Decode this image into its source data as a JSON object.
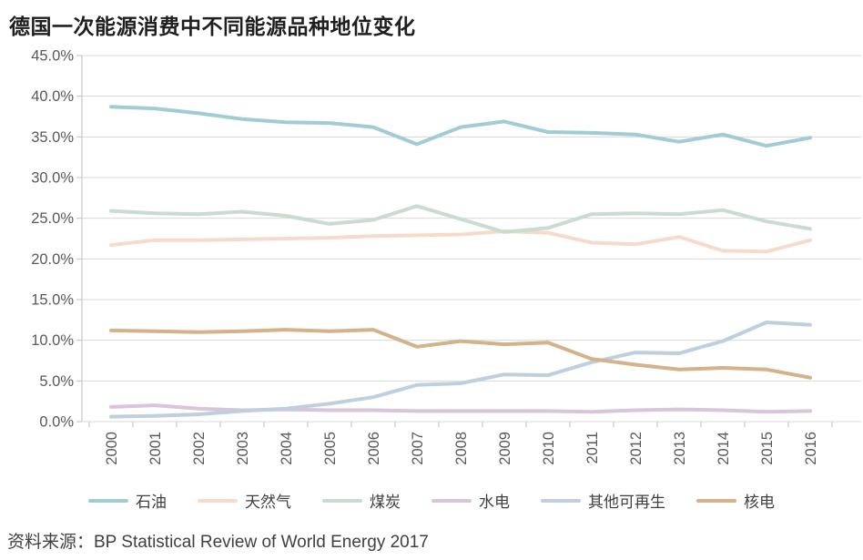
{
  "title": "德国一次能源消费中不同能源品种地位变化",
  "source": "资料来源：BP Statistical Review of World Energy 2017",
  "axis_color": "#bfbfbf",
  "grid_color": "#d9d9d9",
  "chart_data": {
    "type": "line",
    "title": "德国一次能源消费中不同能源品种地位变化",
    "xlabel": "",
    "ylabel": "",
    "ylim": [
      0,
      45
    ],
    "ytick_step": 5,
    "grid": true,
    "legend_position": "bottom",
    "y_tick_labels": [
      "45.0%",
      "40.0%",
      "35.0%",
      "30.0%",
      "25.0%",
      "20.0%",
      "15.0%",
      "10.0%",
      "5.0%",
      "0.0%"
    ],
    "x_tick_labels": [
      "2000",
      "2001",
      "2002",
      "2003",
      "2004",
      "2005",
      "2006",
      "2007",
      "2008",
      "2009",
      "2010",
      "2011",
      "2012",
      "2013",
      "2014",
      "2015",
      "2016"
    ],
    "x": [
      2000,
      2001,
      2002,
      2003,
      2004,
      2005,
      2006,
      2007,
      2008,
      2009,
      2010,
      2011,
      2012,
      2013,
      2014,
      2015,
      2016
    ],
    "series": [
      {
        "id": "oil",
        "name": "石油",
        "color": "#a2ccd3",
        "values": [
          38.7,
          38.5,
          37.9,
          37.2,
          36.8,
          36.7,
          36.2,
          34.1,
          36.2,
          36.9,
          35.6,
          35.5,
          35.3,
          34.4,
          35.3,
          33.9,
          34.9
        ]
      },
      {
        "id": "natural-gas",
        "name": "天然气",
        "color": "#f7dbca",
        "values": [
          21.7,
          22.3,
          22.3,
          22.4,
          22.5,
          22.6,
          22.8,
          22.9,
          23.0,
          23.4,
          23.2,
          22.0,
          21.8,
          22.7,
          21.0,
          20.9,
          22.3
        ]
      },
      {
        "id": "coal",
        "name": "煤炭",
        "color": "#c9dcd2",
        "values": [
          25.9,
          25.6,
          25.5,
          25.8,
          25.3,
          24.3,
          24.8,
          26.5,
          24.9,
          23.3,
          23.8,
          25.5,
          25.6,
          25.5,
          26.0,
          24.6,
          23.7
        ]
      },
      {
        "id": "hydro",
        "name": "水电",
        "color": "#d9c4da",
        "values": [
          1.8,
          2.0,
          1.6,
          1.4,
          1.5,
          1.4,
          1.4,
          1.3,
          1.3,
          1.3,
          1.3,
          1.2,
          1.4,
          1.5,
          1.4,
          1.2,
          1.3
        ]
      },
      {
        "id": "other-renewables",
        "name": "其他可再生",
        "color": "#bed0dd",
        "values": [
          0.6,
          0.7,
          0.9,
          1.3,
          1.6,
          2.2,
          3.0,
          4.5,
          4.7,
          5.8,
          5.7,
          7.3,
          8.5,
          8.4,
          9.9,
          12.2,
          11.9
        ]
      },
      {
        "id": "nuclear",
        "name": "核电",
        "color": "#d4b28a",
        "values": [
          11.2,
          11.1,
          11.0,
          11.1,
          11.3,
          11.1,
          11.3,
          9.2,
          9.9,
          9.5,
          9.7,
          7.7,
          7.0,
          6.4,
          6.6,
          6.4,
          5.4
        ]
      }
    ]
  }
}
